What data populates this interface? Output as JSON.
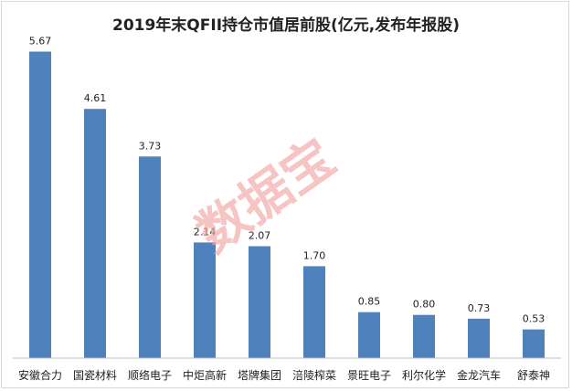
{
  "chart_data": {
    "type": "bar",
    "title": "2019年末QFII持仓市值居前股(亿元,发布年报股)",
    "categories": [
      "安徽合力",
      "国瓷材料",
      "顺络电子",
      "中炬高新",
      "塔牌集团",
      "涪陵榨菜",
      "景旺电子",
      "利尔化学",
      "金龙汽车",
      "舒泰神"
    ],
    "values": [
      5.67,
      4.61,
      3.73,
      2.14,
      2.07,
      1.7,
      0.85,
      0.8,
      0.73,
      0.53
    ],
    "value_labels": [
      "5.67",
      "4.61",
      "3.73",
      "2.14",
      "2.07",
      "1.70",
      "0.85",
      "0.80",
      "0.73",
      "0.53"
    ],
    "xlabel": "",
    "ylabel": "",
    "ylim": [
      0,
      6
    ],
    "grid": false,
    "legend": "none",
    "bar_color": "#4f81bd"
  },
  "watermark": {
    "text": "数据宝",
    "color": "#f4a6a6"
  }
}
